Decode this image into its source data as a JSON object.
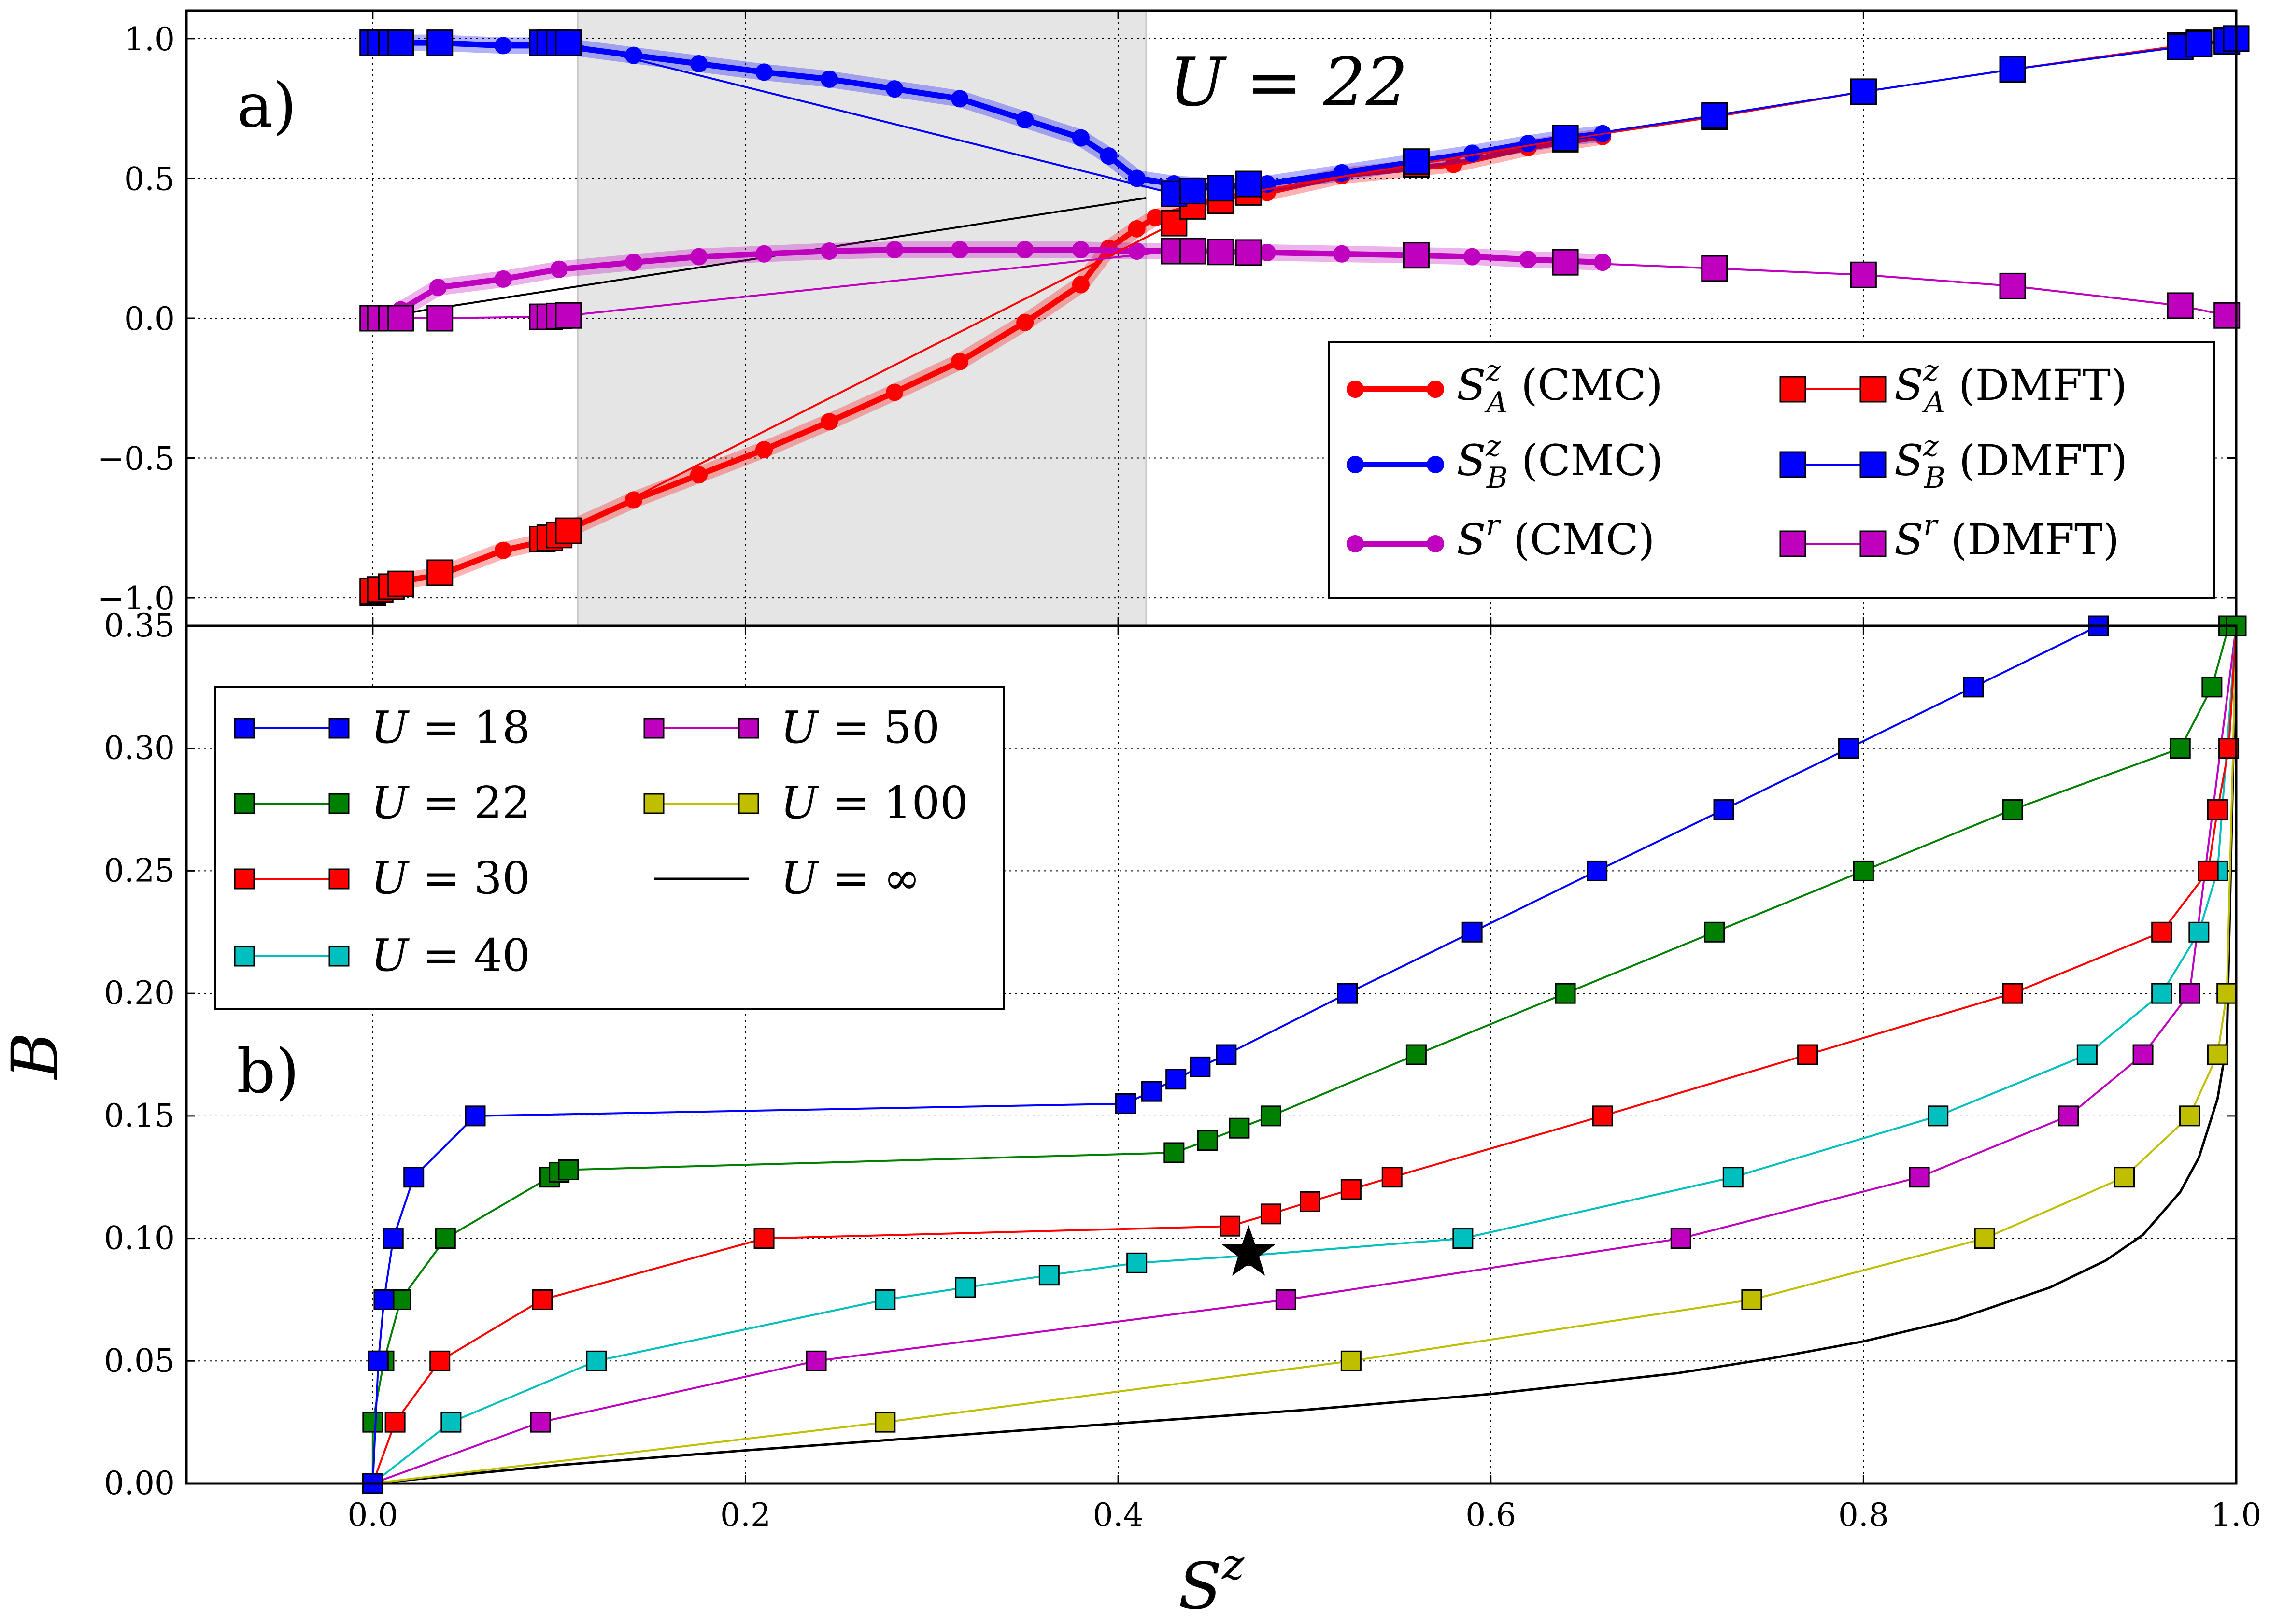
{
  "chart_data": [
    {
      "panel_label": "a)",
      "annotation": "U = 22",
      "type": "line",
      "xlim": [
        -0.1,
        1.0
      ],
      "ylim": [
        -1.1,
        1.1
      ],
      "xticks": [
        0.0,
        0.2,
        0.4,
        0.6,
        0.8,
        1.0
      ],
      "yticks": [
        -1.0,
        -0.5,
        0.0,
        0.5,
        1.0
      ],
      "ytick_labels": [
        "−1.0",
        "−0.5",
        "0.0",
        "0.5",
        "1.0"
      ],
      "grid": true,
      "shaded_region": {
        "x0": 0.11,
        "x1": 0.415
      },
      "guide_line": [
        [
          0.0,
          0.0
        ],
        [
          0.415,
          0.43
        ]
      ],
      "legend_position": "bottom-right",
      "series": [
        {
          "name": "S_A^z (CMC)",
          "legend_sym": "S",
          "legend_sup": "z",
          "legend_sub": "A",
          "legend_suffix": " (CMC)",
          "color": "#ff0000",
          "marker": "circle",
          "width": 3,
          "x": [
            0.0,
            0.0,
            0.005,
            0.01,
            0.015,
            0.035,
            0.07,
            0.09,
            0.1,
            0.14,
            0.175,
            0.21,
            0.245,
            0.28,
            0.315,
            0.35,
            0.38,
            0.395,
            0.41,
            0.42,
            0.44,
            0.455,
            0.48,
            0.52,
            0.58,
            0.62,
            0.64,
            0.66
          ],
          "y": [
            -0.98,
            -0.97,
            -0.96,
            -0.955,
            -0.94,
            -0.92,
            -0.83,
            -0.8,
            -0.77,
            -0.65,
            -0.56,
            -0.47,
            -0.37,
            -0.265,
            -0.155,
            -0.015,
            0.12,
            0.25,
            0.32,
            0.36,
            0.4,
            0.43,
            0.45,
            0.51,
            0.55,
            0.61,
            0.63,
            0.65
          ]
        },
        {
          "name": "S_B^z (CMC)",
          "legend_sym": "S",
          "legend_sup": "z",
          "legend_sub": "B",
          "legend_suffix": " (CMC)",
          "color": "#0000ff",
          "marker": "circle",
          "width": 3,
          "x": [
            0.0,
            0.0,
            0.005,
            0.01,
            0.015,
            0.035,
            0.07,
            0.09,
            0.1,
            0.14,
            0.175,
            0.21,
            0.245,
            0.28,
            0.315,
            0.35,
            0.38,
            0.395,
            0.41,
            0.43,
            0.455,
            0.48,
            0.52,
            0.56,
            0.59,
            0.62,
            0.64,
            0.66
          ],
          "y": [
            0.985,
            0.985,
            0.985,
            0.985,
            0.985,
            0.985,
            0.975,
            0.975,
            0.975,
            0.94,
            0.91,
            0.88,
            0.855,
            0.82,
            0.785,
            0.71,
            0.645,
            0.58,
            0.5,
            0.48,
            0.47,
            0.48,
            0.52,
            0.56,
            0.59,
            0.625,
            0.645,
            0.66
          ]
        },
        {
          "name": "S^r (CMC)",
          "legend_sym": "S",
          "legend_sup": "r",
          "legend_sub": "",
          "legend_suffix": " (CMC)",
          "color": "#bf00bf",
          "marker": "circle",
          "width": 3,
          "x": [
            0.0,
            0.0,
            0.005,
            0.01,
            0.015,
            0.035,
            0.07,
            0.1,
            0.14,
            0.175,
            0.21,
            0.245,
            0.28,
            0.315,
            0.35,
            0.38,
            0.41,
            0.44,
            0.48,
            0.52,
            0.56,
            0.59,
            0.62,
            0.66
          ],
          "y": [
            0.0,
            0.0,
            0.0,
            0.01,
            0.03,
            0.11,
            0.14,
            0.175,
            0.2,
            0.22,
            0.23,
            0.24,
            0.245,
            0.245,
            0.245,
            0.245,
            0.24,
            0.24,
            0.235,
            0.23,
            0.225,
            0.22,
            0.21,
            0.2
          ]
        },
        {
          "name": "S_A^z (DMFT)",
          "legend_sym": "S",
          "legend_sup": "z",
          "legend_sub": "A",
          "legend_suffix": " (DMFT)",
          "color": "#ff0000",
          "marker": "square",
          "width": 2,
          "x": [
            0.0,
            0.0,
            0.004,
            0.01,
            0.015,
            0.036,
            0.091,
            0.095,
            0.1,
            0.105,
            0.43,
            0.44,
            0.455,
            0.47,
            0.56,
            0.64,
            0.72,
            0.8,
            0.88,
            0.97,
            0.98,
            0.995,
            1.0
          ],
          "y": [
            -0.98,
            -0.975,
            -0.97,
            -0.96,
            -0.95,
            -0.91,
            -0.79,
            -0.785,
            -0.775,
            -0.76,
            0.34,
            0.4,
            0.42,
            0.45,
            0.55,
            0.64,
            0.72,
            0.81,
            0.89,
            0.975,
            0.985,
            0.995,
            1.0
          ]
        },
        {
          "name": "S_B^z (DMFT)",
          "legend_sym": "S",
          "legend_sup": "z",
          "legend_sub": "B",
          "legend_suffix": " (DMFT)",
          "color": "#0000ff",
          "marker": "square",
          "width": 2,
          "x": [
            0.0,
            0.0,
            0.004,
            0.01,
            0.015,
            0.036,
            0.091,
            0.095,
            0.1,
            0.105,
            0.43,
            0.44,
            0.455,
            0.47,
            0.56,
            0.64,
            0.72,
            0.8,
            0.88,
            0.97,
            0.98,
            0.995,
            1.0
          ],
          "y": [
            0.985,
            0.985,
            0.985,
            0.985,
            0.985,
            0.985,
            0.985,
            0.985,
            0.985,
            0.985,
            0.445,
            0.455,
            0.465,
            0.48,
            0.56,
            0.645,
            0.725,
            0.81,
            0.89,
            0.97,
            0.98,
            0.99,
            1.0
          ]
        },
        {
          "name": "S^r (DMFT)",
          "legend_sym": "S",
          "legend_sup": "r",
          "legend_sub": "",
          "legend_suffix": " (DMFT)",
          "color": "#bf00bf",
          "marker": "square",
          "width": 2,
          "x": [
            0.0,
            0.0,
            0.004,
            0.01,
            0.015,
            0.036,
            0.091,
            0.095,
            0.1,
            0.105,
            0.43,
            0.44,
            0.455,
            0.47,
            0.56,
            0.64,
            0.72,
            0.8,
            0.88,
            0.97,
            0.995
          ],
          "y": [
            0.0,
            0.0,
            0.0,
            0.0,
            0.0,
            0.0,
            0.005,
            0.005,
            0.008,
            0.01,
            0.24,
            0.24,
            0.237,
            0.235,
            0.225,
            0.2,
            0.178,
            0.155,
            0.115,
            0.045,
            0.01
          ]
        }
      ]
    },
    {
      "panel_label": "b)",
      "type": "line",
      "xlabel": "S",
      "xlabel_sup": "z",
      "ylabel": "B",
      "xlim": [
        -0.1,
        1.0
      ],
      "ylim": [
        0.0,
        0.35
      ],
      "xticks": [
        0.0,
        0.2,
        0.4,
        0.6,
        0.8,
        1.0
      ],
      "yticks": [
        0.0,
        0.05,
        0.1,
        0.15,
        0.2,
        0.25,
        0.3,
        0.35
      ],
      "xtick_labels": [
        "0.0",
        "0.2",
        "0.4",
        "0.6",
        "0.8",
        "1.0"
      ],
      "ytick_labels": [
        "0.00",
        "0.05",
        "0.10",
        "0.15",
        "0.20",
        "0.25",
        "0.30",
        "0.35"
      ],
      "grid": true,
      "star_marker": {
        "x": 0.47,
        "y": 0.094
      },
      "legend_position": "top-left",
      "series": [
        {
          "name": "U = 18",
          "legend_sym": "U",
          "legend_value": " = 18",
          "color": "#0000ff",
          "marker": "square",
          "x": [
            0.0,
            0.003,
            0.006,
            0.011,
            0.022,
            0.055,
            0.404,
            0.418,
            0.431,
            0.444,
            0.458,
            0.523,
            0.59,
            0.657,
            0.725,
            0.792,
            0.859,
            0.926
          ],
          "y": [
            0.0,
            0.05,
            0.075,
            0.1,
            0.125,
            0.15,
            0.155,
            0.16,
            0.165,
            0.17,
            0.175,
            0.2,
            0.225,
            0.25,
            0.275,
            0.3,
            0.325,
            0.35
          ]
        },
        {
          "name": "U = 22",
          "legend_sym": "U",
          "legend_value": " = 22",
          "color": "#008000",
          "marker": "square",
          "x": [
            0.0,
            0.0,
            0.006,
            0.015,
            0.039,
            0.095,
            0.1,
            0.105,
            0.43,
            0.448,
            0.465,
            0.482,
            0.56,
            0.64,
            0.72,
            0.8,
            0.88,
            0.97,
            0.987,
            0.996,
            1.0
          ],
          "y": [
            0.0,
            0.025,
            0.05,
            0.075,
            0.1,
            0.125,
            0.127,
            0.128,
            0.135,
            0.14,
            0.145,
            0.15,
            0.175,
            0.2,
            0.225,
            0.25,
            0.275,
            0.3,
            0.325,
            0.35,
            0.35
          ]
        },
        {
          "name": "U = 30",
          "legend_sym": "U",
          "legend_value": " = 30",
          "color": "#ff0000",
          "marker": "square",
          "x": [
            0.0,
            0.012,
            0.036,
            0.091,
            0.21,
            0.46,
            0.482,
            0.503,
            0.525,
            0.547,
            0.66,
            0.77,
            0.88,
            0.96,
            0.985,
            0.99,
            0.996,
            1.0
          ],
          "y": [
            0.0,
            0.025,
            0.05,
            0.075,
            0.1,
            0.105,
            0.11,
            0.115,
            0.12,
            0.125,
            0.15,
            0.175,
            0.2,
            0.225,
            0.25,
            0.275,
            0.3,
            0.35
          ]
        },
        {
          "name": "U = 40",
          "legend_sym": "U",
          "legend_value": " = 40",
          "color": "#00bfbf",
          "marker": "square",
          "x": [
            0.0,
            0.042,
            0.12,
            0.275,
            0.318,
            0.363,
            0.41,
            0.47,
            0.585,
            0.73,
            0.84,
            0.92,
            0.96,
            0.98,
            0.99,
            1.0
          ],
          "y": [
            0.0,
            0.025,
            0.05,
            0.075,
            0.08,
            0.085,
            0.09,
            0.093,
            0.1,
            0.125,
            0.15,
            0.175,
            0.2,
            0.225,
            0.25,
            0.35
          ]
        },
        {
          "name": "U = 50",
          "legend_sym": "U",
          "legend_value": " = 50",
          "color": "#bf00bf",
          "marker": "square",
          "x": [
            0.0,
            0.09,
            0.238,
            0.49,
            0.702,
            0.83,
            0.91,
            0.95,
            0.975,
            1.0
          ],
          "y": [
            0.0,
            0.025,
            0.05,
            0.075,
            0.1,
            0.125,
            0.15,
            0.175,
            0.2,
            0.35
          ]
        },
        {
          "name": "U = 100",
          "legend_sym": "U",
          "legend_value": " = 100",
          "color": "#bfbf00",
          "marker": "square",
          "x": [
            0.0,
            0.275,
            0.525,
            0.74,
            0.865,
            0.94,
            0.975,
            0.99,
            0.995,
            1.0
          ],
          "y": [
            0.0,
            0.025,
            0.05,
            0.075,
            0.1,
            0.125,
            0.15,
            0.175,
            0.2,
            0.35
          ]
        },
        {
          "name": "U = ∞",
          "legend_sym": "U",
          "legend_value": " = ∞",
          "color": "#000000",
          "marker": "none",
          "x": [
            0.0,
            0.1,
            0.2,
            0.3,
            0.4,
            0.5,
            0.6,
            0.7,
            0.75,
            0.8,
            0.85,
            0.9,
            0.93,
            0.95,
            0.97,
            0.98,
            0.99,
            0.995,
            1.0
          ],
          "y": [
            0.0,
            0.0075,
            0.0135,
            0.019,
            0.0245,
            0.03,
            0.0365,
            0.045,
            0.051,
            0.058,
            0.067,
            0.08,
            0.091,
            0.1015,
            0.119,
            0.133,
            0.157,
            0.18,
            0.35
          ]
        }
      ]
    }
  ]
}
